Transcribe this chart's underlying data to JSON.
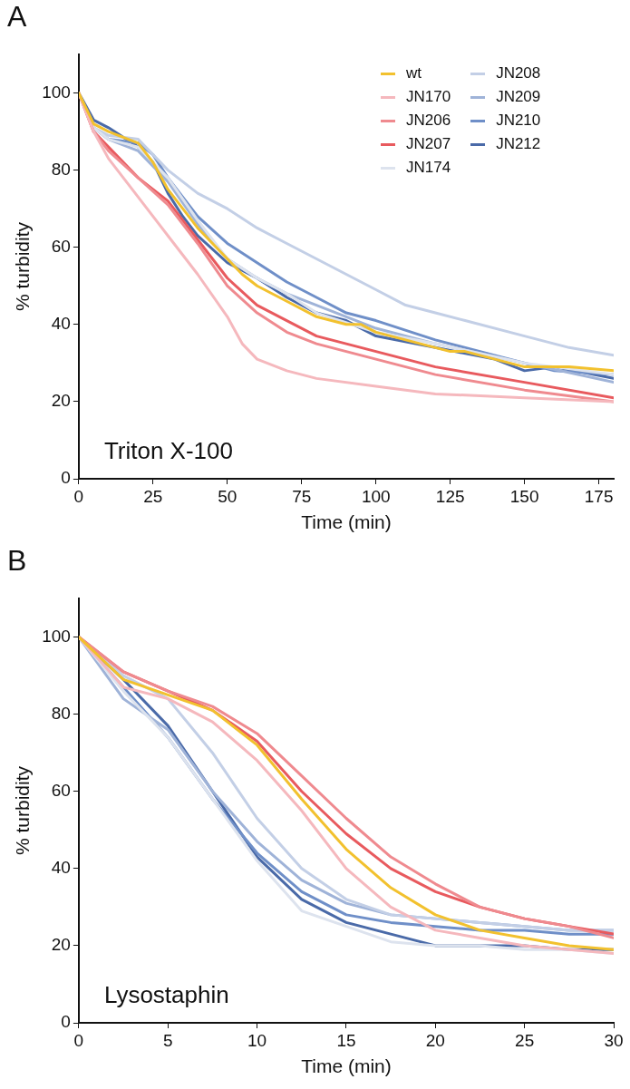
{
  "chart_data": [
    {
      "type": "line",
      "title": "A",
      "xlabel": "Time (min)",
      "ylabel": "% turbidity",
      "annotations": [
        "Triton X-100"
      ],
      "xlim": [
        0,
        180
      ],
      "xticks": [
        0,
        25,
        50,
        75,
        100,
        125,
        150,
        175
      ],
      "ylim": [
        0,
        110
      ],
      "yticks": [
        0,
        20,
        40,
        60,
        80,
        100
      ],
      "grid": false,
      "legend": "top right",
      "marker": "none",
      "line_style": "solid",
      "series": [
        {
          "name": "wt",
          "color": "#f2c12e",
          "x": [
            0,
            5,
            10,
            20,
            25,
            30,
            40,
            50,
            55,
            60,
            70,
            80,
            90,
            95,
            100,
            110,
            125,
            130,
            150,
            165,
            180
          ],
          "values": [
            100,
            92,
            90,
            87,
            82,
            75,
            65,
            57,
            53,
            50,
            46,
            42,
            40,
            40,
            38,
            36,
            33,
            33,
            29,
            29,
            28
          ]
        },
        {
          "name": "JN170",
          "color": "#f5b8bd",
          "x": [
            0,
            5,
            10,
            20,
            30,
            40,
            50,
            55,
            60,
            70,
            80,
            100,
            110,
            120,
            150,
            180
          ],
          "values": [
            100,
            90,
            83,
            73,
            63,
            53,
            42,
            35,
            31,
            28,
            26,
            24,
            23,
            22,
            21,
            20
          ]
        },
        {
          "name": "JN206",
          "color": "#ef8a8f",
          "x": [
            0,
            5,
            10,
            20,
            30,
            40,
            50,
            60,
            70,
            80,
            100,
            120,
            150,
            180
          ],
          "values": [
            100,
            90,
            85,
            78,
            71,
            61,
            50,
            43,
            38,
            35,
            31,
            27,
            23,
            20
          ]
        },
        {
          "name": "JN207",
          "color": "#e85a5e",
          "x": [
            0,
            5,
            10,
            20,
            30,
            40,
            50,
            60,
            70,
            80,
            100,
            120,
            150,
            180
          ],
          "values": [
            100,
            90,
            86,
            78,
            72,
            62,
            52,
            45,
            41,
            37,
            33,
            29,
            25,
            21
          ]
        },
        {
          "name": "JN174",
          "color": "#dde3ee",
          "x": [
            0,
            5,
            10,
            20,
            30,
            40,
            50,
            60,
            70,
            80,
            100,
            120,
            150,
            180
          ],
          "values": [
            100,
            91,
            88,
            86,
            78,
            67,
            57,
            52,
            48,
            43,
            38,
            35,
            30,
            27
          ]
        },
        {
          "name": "JN208",
          "color": "#c3cfe6",
          "x": [
            0,
            5,
            10,
            20,
            30,
            40,
            50,
            60,
            70,
            80,
            90,
            100,
            110,
            120,
            130,
            150,
            165,
            180
          ],
          "values": [
            100,
            91,
            89,
            88,
            80,
            74,
            70,
            65,
            61,
            57,
            53,
            49,
            45,
            43,
            41,
            37,
            34,
            32
          ]
        },
        {
          "name": "JN209",
          "color": "#9fb3d8",
          "x": [
            0,
            5,
            10,
            20,
            30,
            40,
            50,
            60,
            70,
            80,
            100,
            120,
            150,
            180
          ],
          "values": [
            100,
            91,
            88,
            85,
            77,
            66,
            57,
            52,
            48,
            45,
            39,
            35,
            30,
            25
          ]
        },
        {
          "name": "JN210",
          "color": "#6f8fc8",
          "x": [
            0,
            5,
            10,
            20,
            25,
            30,
            40,
            50,
            60,
            70,
            80,
            90,
            100,
            120,
            140,
            150,
            160,
            180
          ],
          "values": [
            100,
            91,
            88,
            87,
            84,
            78,
            68,
            61,
            56,
            51,
            47,
            43,
            41,
            36,
            32,
            30,
            28,
            27
          ]
        },
        {
          "name": "JN212",
          "color": "#4a6aa8",
          "x": [
            0,
            5,
            10,
            20,
            25,
            30,
            35,
            40,
            50,
            60,
            70,
            80,
            90,
            100,
            120,
            140,
            150,
            160,
            180
          ],
          "values": [
            100,
            93,
            91,
            86,
            82,
            74,
            68,
            63,
            56,
            52,
            47,
            43,
            41,
            37,
            34,
            31,
            28,
            29,
            26
          ]
        }
      ]
    },
    {
      "type": "line",
      "title": "B",
      "xlabel": "Time (min)",
      "ylabel": "% turbidity",
      "annotations": [
        "Lysostaphin"
      ],
      "x": [
        0,
        2.5,
        5,
        7.5,
        10,
        12.5,
        15,
        17.5,
        20,
        22.5,
        25,
        27.5,
        30
      ],
      "xlim": [
        0,
        30
      ],
      "xticks": [
        0,
        5,
        10,
        15,
        20,
        25,
        30
      ],
      "ylim": [
        0,
        110
      ],
      "yticks": [
        0,
        20,
        40,
        60,
        80,
        100
      ],
      "grid": false,
      "legend": false,
      "marker": "none",
      "line_style": "solid",
      "series": [
        {
          "color": "#f2c12e",
          "values": [
            100,
            89,
            85,
            81,
            72,
            58,
            45,
            35,
            28,
            24,
            22,
            20,
            19
          ]
        },
        {
          "color": "#f5b8bd",
          "values": [
            100,
            87,
            84,
            78,
            68,
            55,
            40,
            30,
            24,
            22,
            20,
            19,
            18
          ]
        },
        {
          "color": "#ef8a8f",
          "values": [
            100,
            91,
            86,
            82,
            75,
            64,
            53,
            43,
            36,
            30,
            27,
            25,
            22
          ]
        },
        {
          "color": "#e85a5e",
          "values": [
            100,
            91,
            86,
            81,
            73,
            60,
            49,
            40,
            34,
            30,
            27,
            25,
            23
          ]
        },
        {
          "color": "#dde3ee",
          "values": [
            100,
            86,
            74,
            58,
            42,
            29,
            25,
            21,
            20,
            20,
            19,
            19,
            18
          ]
        },
        {
          "color": "#c3cfe6",
          "values": [
            100,
            90,
            84,
            70,
            53,
            40,
            32,
            28,
            27,
            26,
            25,
            24,
            24
          ]
        },
        {
          "color": "#9fb3d8",
          "values": [
            100,
            84,
            76,
            60,
            47,
            37,
            31,
            28,
            27,
            26,
            25,
            24,
            24
          ]
        },
        {
          "color": "#6f8fc8",
          "values": [
            100,
            87,
            74,
            58,
            44,
            34,
            28,
            26,
            25,
            24,
            24,
            23,
            23
          ]
        },
        {
          "color": "#4a6aa8",
          "values": [
            100,
            89,
            77,
            60,
            43,
            32,
            26,
            23,
            20,
            20,
            20,
            19,
            19
          ]
        }
      ]
    }
  ]
}
